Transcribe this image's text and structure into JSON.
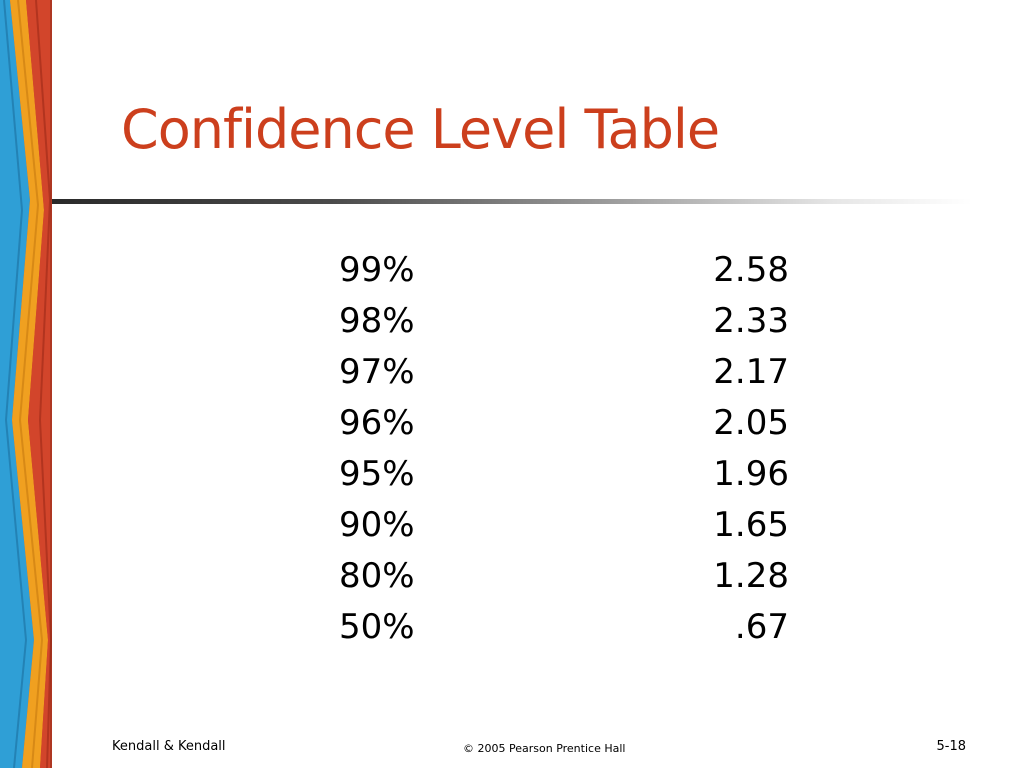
{
  "slide": {
    "title": "Confidence Level Table",
    "colors": {
      "title": "#cc3f1d",
      "body_text": "#000000",
      "background": "#ffffff"
    },
    "table": {
      "rows": [
        {
          "level": "99%",
          "z": "2.58"
        },
        {
          "level": "98%",
          "z": "2.33"
        },
        {
          "level": "97%",
          "z": "2.17"
        },
        {
          "level": "96%",
          "z": "2.05"
        },
        {
          "level": "95%",
          "z": "1.96"
        },
        {
          "level": "90%",
          "z": "1.65"
        },
        {
          "level": "80%",
          "z": "1.28"
        },
        {
          "level": "50%",
          "z": ".67"
        }
      ]
    },
    "footer": {
      "left": "Kendall & Kendall",
      "center": "© 2005 Pearson Prentice Hall",
      "right": "5-18"
    }
  }
}
